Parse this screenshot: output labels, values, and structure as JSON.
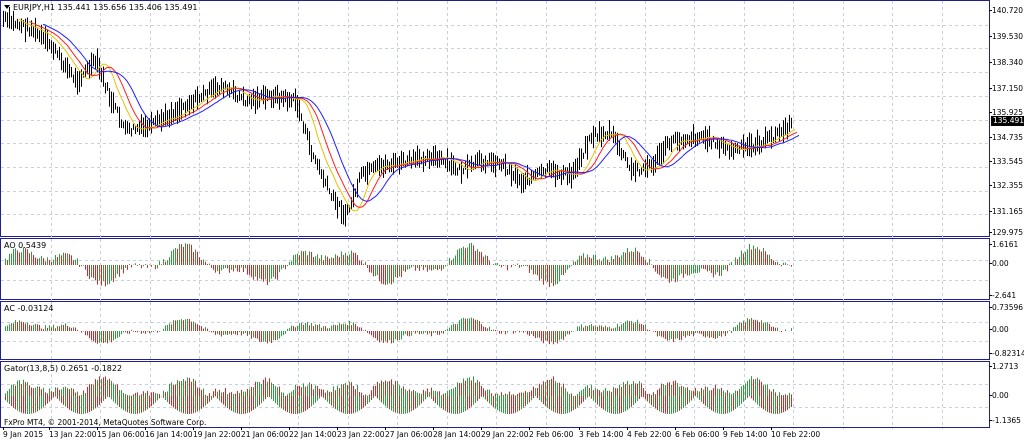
{
  "main_pane": {
    "symbol_arrow_icon": "triangle-down-icon",
    "title": "EURJPY,H1  135.441 135.656 135.406 135.491",
    "current_price": "135.491",
    "scale": [
      "140.720",
      "139.530",
      "138.340",
      "137.150",
      "135.925",
      "134.735",
      "133.545",
      "132.355",
      "131.165",
      "129.975"
    ]
  },
  "ao_pane": {
    "title": "AO 0.5439",
    "scale": [
      "1.6161",
      "0.00",
      "-2.641"
    ]
  },
  "ac_pane": {
    "title": "AC -0.03124",
    "scale": [
      "0.73596",
      "0.00",
      "-0.82314"
    ]
  },
  "gator_pane": {
    "title": "Gator(13,8,5) 0.2651 -0.1822",
    "scale": [
      "1.2713",
      "0.00",
      "-1.1365"
    ],
    "copyright": "FxPro MT4, © 2001-2014, MetaQuotes Software Corp."
  },
  "time_axis": [
    "9 Jan 2015",
    "13 Jan 22:00",
    "15 Jan 06:00",
    "16 Jan 14:00",
    "19 Jan 22:00",
    "21 Jan 06:00",
    "22 Jan 14:00",
    "23 Jan 22:00",
    "27 Jan 06:00",
    "28 Jan 14:00",
    "29 Jan 22:00",
    "2 Feb 06:00",
    "3 Feb 14:00",
    "4 Feb 22:00",
    "6 Feb 06:00",
    "9 Feb 14:00",
    "10 Feb 22:00"
  ],
  "colors": {
    "bull": "#2e9e3e",
    "bear": "#e02424",
    "ma_blue": "#2020ff",
    "ma_red": "#ff2020",
    "ma_yellow": "#e8c000",
    "grid": "#c8d0dc",
    "border": "#1f1f8f"
  }
}
